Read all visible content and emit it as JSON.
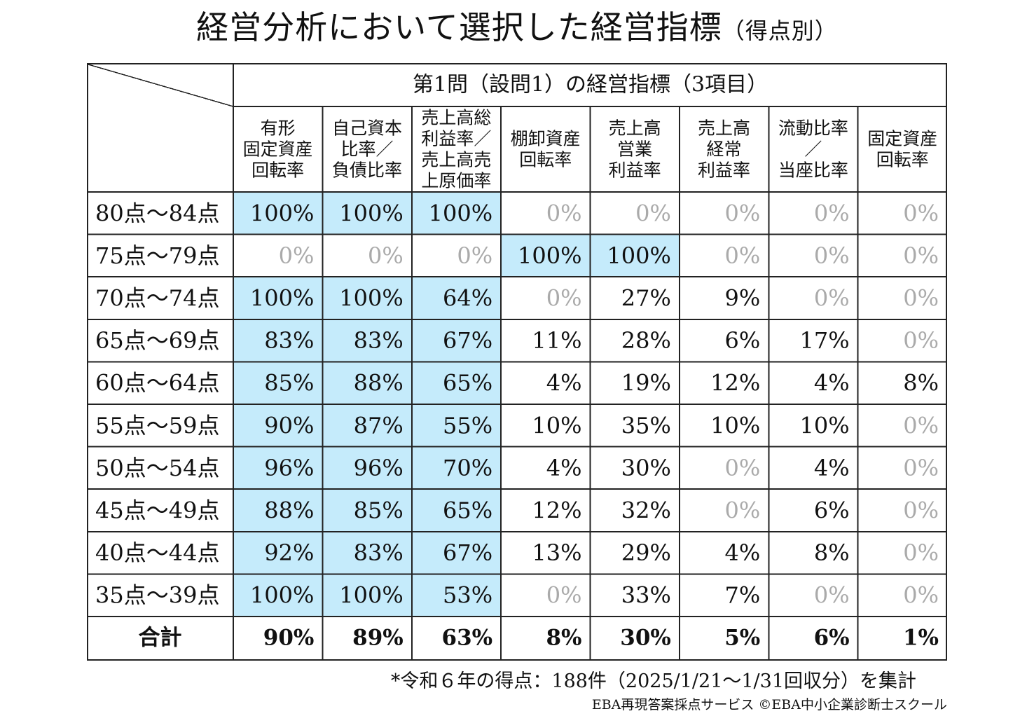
{
  "title": "経営分析において選択した経営指標",
  "title_suffix": "（得点別）",
  "colors": {
    "highlight": "#c5ebfb",
    "zero_text": "#aaaaaa",
    "text": "#111111",
    "border": "#222222"
  },
  "chart_data": {
    "type": "table",
    "group_header": "第1問（設問1）の経営指標（3項目）",
    "columns": [
      [
        "有形",
        "固定資産",
        "回転率"
      ],
      [
        "自己資本",
        "比率／",
        "負債比率"
      ],
      [
        "売上高総",
        "利益率／",
        "売上高売",
        "上原価率"
      ],
      [
        "棚卸資産",
        "回転率"
      ],
      [
        "売上高",
        "営業",
        "利益率"
      ],
      [
        "売上高",
        "経常",
        "利益率"
      ],
      [
        "流動比率",
        "／",
        "当座比率"
      ],
      [
        "固定資産",
        "回転率"
      ]
    ],
    "rows": [
      {
        "label": "80点～84点",
        "values": [
          100,
          100,
          100,
          0,
          0,
          0,
          0,
          0
        ],
        "highlight": [
          true,
          true,
          true,
          false,
          false,
          false,
          false,
          false
        ]
      },
      {
        "label": "75点～79点",
        "values": [
          0,
          0,
          0,
          100,
          100,
          0,
          0,
          0
        ],
        "highlight": [
          false,
          false,
          false,
          true,
          true,
          false,
          false,
          false
        ]
      },
      {
        "label": "70点～74点",
        "values": [
          100,
          100,
          64,
          0,
          27,
          9,
          0,
          0
        ],
        "highlight": [
          true,
          true,
          true,
          false,
          false,
          false,
          false,
          false
        ]
      },
      {
        "label": "65点～69点",
        "values": [
          83,
          83,
          67,
          11,
          28,
          6,
          17,
          0
        ],
        "highlight": [
          true,
          true,
          true,
          false,
          false,
          false,
          false,
          false
        ]
      },
      {
        "label": "60点～64点",
        "values": [
          85,
          88,
          65,
          4,
          19,
          12,
          4,
          8
        ],
        "highlight": [
          true,
          true,
          true,
          false,
          false,
          false,
          false,
          false
        ]
      },
      {
        "label": "55点～59点",
        "values": [
          90,
          87,
          55,
          10,
          35,
          10,
          10,
          0
        ],
        "highlight": [
          true,
          true,
          true,
          false,
          false,
          false,
          false,
          false
        ]
      },
      {
        "label": "50点～54点",
        "values": [
          96,
          96,
          70,
          4,
          30,
          0,
          4,
          0
        ],
        "highlight": [
          true,
          true,
          true,
          false,
          false,
          false,
          false,
          false
        ]
      },
      {
        "label": "45点～49点",
        "values": [
          88,
          85,
          65,
          12,
          32,
          0,
          6,
          0
        ],
        "highlight": [
          true,
          true,
          true,
          false,
          false,
          false,
          false,
          false
        ]
      },
      {
        "label": "40点～44点",
        "values": [
          92,
          83,
          67,
          13,
          29,
          4,
          8,
          0
        ],
        "highlight": [
          true,
          true,
          true,
          false,
          false,
          false,
          false,
          false
        ]
      },
      {
        "label": "35点～39点",
        "values": [
          100,
          100,
          53,
          0,
          33,
          7,
          0,
          0
        ],
        "highlight": [
          true,
          true,
          true,
          false,
          false,
          false,
          false,
          false
        ]
      }
    ],
    "total": {
      "label": "合計",
      "values": [
        90,
        89,
        63,
        8,
        30,
        5,
        6,
        1
      ]
    },
    "unit": "%"
  },
  "footnote": "*令和６年の得点：188件（2025/1/21～1/31回収分）を集計",
  "credit": "EBA再現答案採点サービス ©EBA中小企業診断士スクール"
}
